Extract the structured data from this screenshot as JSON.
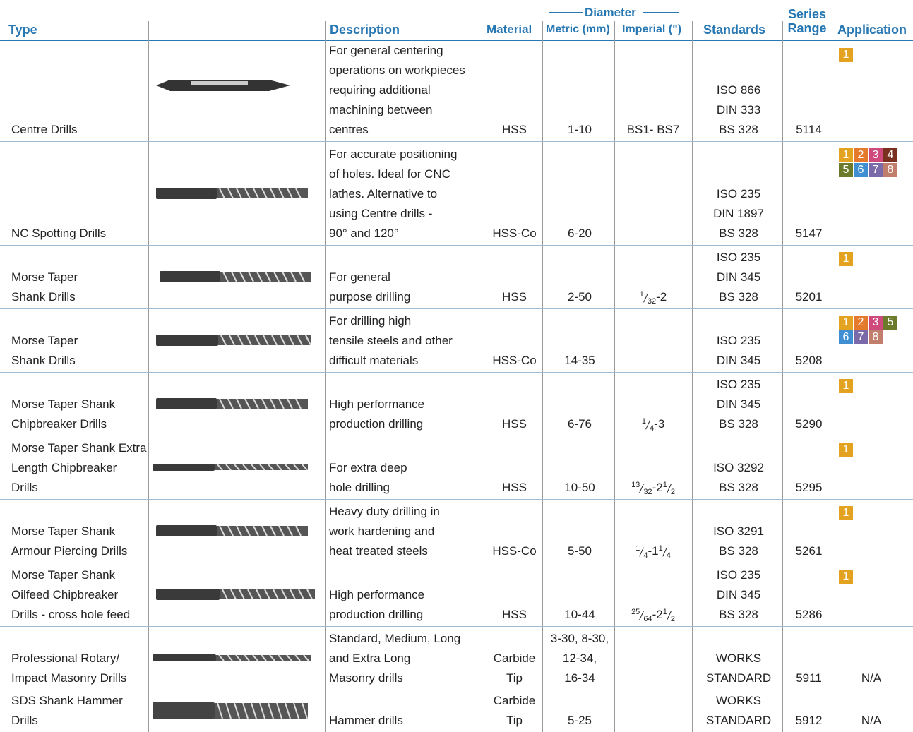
{
  "header": {
    "type": "Type",
    "description": "Description",
    "material": "Material",
    "diameter": "Diameter",
    "metric": "Metric (mm)",
    "imperial": "Imperial (\")",
    "standards": "Standards",
    "series": [
      "Series",
      "Range"
    ],
    "application": "Application"
  },
  "badge_colors": {
    "1": "#e3a320",
    "2": "#e57a2c",
    "3": "#cf4a7c",
    "4": "#7b2f1f",
    "5": "#6b7b2b",
    "6": "#3f8fd2",
    "7": "#7a6aa9",
    "8": "#c27e6d"
  },
  "rows": [
    {
      "type": [
        "Centre Drills"
      ],
      "description": [
        "For general centering",
        "operations on workpieces",
        "requiring additional",
        "machining between",
        "centres"
      ],
      "material": [
        "HSS"
      ],
      "metric": [
        "1-10"
      ],
      "imperial": [
        "BS1- BS7"
      ],
      "standards": [
        "ISO 866",
        "DIN 333",
        "BS 328"
      ],
      "series": "5114",
      "application": [
        "1"
      ]
    },
    {
      "type": [
        "NC Spotting Drills"
      ],
      "description": [
        "For accurate positioning",
        "of holes. Ideal for CNC",
        "lathes. Alternative to",
        "using Centre drills -",
        "90° and 120°"
      ],
      "material": [
        "HSS-Co"
      ],
      "metric": [
        "6-20"
      ],
      "standards": [
        "ISO 235",
        "DIN 1897",
        "BS 328"
      ],
      "series": "5147",
      "application": [
        "1",
        "2",
        "3",
        "4",
        "5",
        "6",
        "7",
        "8"
      ]
    },
    {
      "type": [
        "Morse Taper",
        "Shank Drills"
      ],
      "description": [
        "For general",
        "purpose drilling"
      ],
      "material": [
        "HSS"
      ],
      "metric": [
        "2-50"
      ],
      "imperial": [
        {
          "num": "1",
          "den": "32"
        },
        "-2"
      ],
      "standards": [
        "ISO 235",
        "DIN 345",
        "BS 328"
      ],
      "series": "5201",
      "application": [
        "1"
      ]
    },
    {
      "type": [
        "Morse Taper",
        "Shank Drills"
      ],
      "description": [
        "For drilling high",
        "tensile steels and other",
        "difficult materials"
      ],
      "material": [
        "HSS-Co"
      ],
      "metric": [
        "14-35"
      ],
      "standards": [
        "ISO 235",
        "DIN 345"
      ],
      "series": "5208",
      "application": [
        "1",
        "2",
        "3",
        "5",
        "6",
        "7",
        "8"
      ]
    },
    {
      "type": [
        "Morse Taper Shank",
        "Chipbreaker Drills"
      ],
      "description": [
        "High performance",
        "production drilling"
      ],
      "material": [
        "HSS"
      ],
      "metric": [
        "6-76"
      ],
      "imperial": [
        {
          "num": "1",
          "den": "4"
        },
        "-3"
      ],
      "standards": [
        "ISO 235",
        "DIN 345",
        "BS 328"
      ],
      "series": "5290",
      "application": [
        "1"
      ]
    },
    {
      "type": [
        "Morse Taper Shank Extra",
        "Length Chipbreaker",
        "Drills"
      ],
      "description": [
        "For extra deep",
        "hole drilling"
      ],
      "material": [
        "HSS"
      ],
      "metric": [
        "10-50"
      ],
      "imperial": [
        {
          "num": "13",
          "den": "32"
        },
        "-2",
        {
          "num": "1",
          "den": "2"
        }
      ],
      "standards": [
        "ISO 3292",
        "BS 328"
      ],
      "series": "5295",
      "application": [
        "1"
      ]
    },
    {
      "type": [
        "Morse Taper Shank",
        "Armour Piercing Drills"
      ],
      "description": [
        "Heavy duty drilling in",
        "work hardening and",
        "heat treated steels"
      ],
      "material": [
        "HSS-Co"
      ],
      "metric": [
        "5-50"
      ],
      "imperial": [
        {
          "num": "1",
          "den": "4"
        },
        "-1",
        {
          "num": "1",
          "den": "4"
        }
      ],
      "standards": [
        "ISO 3291",
        "BS 328"
      ],
      "series": "5261",
      "application": [
        "1"
      ]
    },
    {
      "type": [
        "Morse Taper Shank",
        "Oilfeed Chipbreaker",
        "Drills - cross hole feed"
      ],
      "description": [
        "High performance",
        "production drilling"
      ],
      "material": [
        "HSS"
      ],
      "metric": [
        "10-44"
      ],
      "imperial": [
        {
          "num": "25",
          "den": "64"
        },
        "-2",
        {
          "num": "1",
          "den": "2"
        }
      ],
      "standards": [
        "ISO 235",
        "DIN 345",
        "BS 328"
      ],
      "series": "5286",
      "application": [
        "1"
      ]
    },
    {
      "type": [
        "Professional Rotary/",
        "Impact Masonry Drills"
      ],
      "description": [
        "Standard, Medium, Long",
        "and Extra Long",
        "Masonry drills"
      ],
      "material": [
        "Carbide",
        "Tip"
      ],
      "metric": [
        "3-30, 8-30,",
        "12-34,",
        "16-34"
      ],
      "standards": [
        "WORKS",
        "STANDARD"
      ],
      "series": "5911",
      "application": "N/A"
    },
    {
      "type": [
        "SDS Shank Hammer",
        "Drills"
      ],
      "description": [
        "Hammer drills"
      ],
      "material": [
        "Carbide",
        "Tip"
      ],
      "metric": [
        "5-25"
      ],
      "standards": [
        "WORKS",
        "STANDARD"
      ],
      "series": "5912",
      "application": "N/A"
    }
  ]
}
